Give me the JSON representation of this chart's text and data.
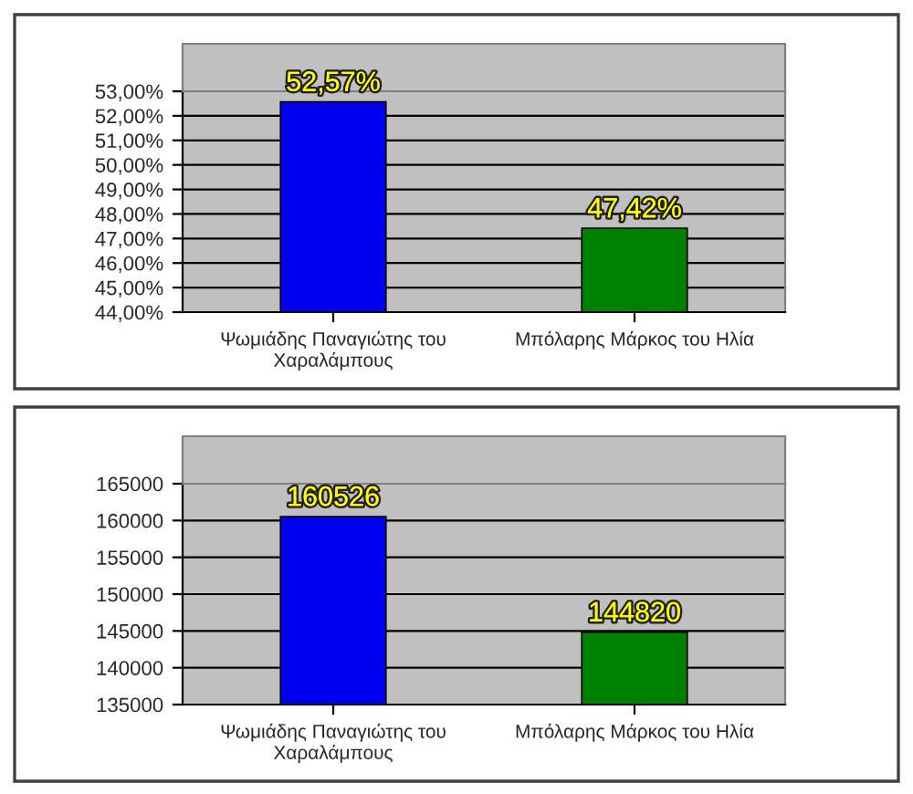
{
  "chart_data": [
    {
      "type": "bar",
      "categories": [
        "Ψωμιάδης Παναγιώτης του\nΧαραλάμπους",
        "Μπόλαρης Μάρκος του Ηλία"
      ],
      "values": [
        52.57,
        47.42
      ],
      "colors": [
        "#0000f0",
        "#008000"
      ],
      "value_labels": [
        "52,57%",
        "47,42%"
      ],
      "ylim": [
        44,
        53
      ],
      "yticks": [
        {
          "value": 44,
          "label": "44,00%"
        },
        {
          "value": 45,
          "label": "45,00%"
        },
        {
          "value": 46,
          "label": "46,00%"
        },
        {
          "value": 47,
          "label": "47,00%"
        },
        {
          "value": 48,
          "label": "48,00%"
        },
        {
          "value": 49,
          "label": "49,00%"
        },
        {
          "value": 50,
          "label": "50,00%"
        },
        {
          "value": 51,
          "label": "51,00%"
        },
        {
          "value": 52,
          "label": "52,00%"
        },
        {
          "value": 53,
          "label": "53,00%"
        }
      ],
      "grid": "y"
    },
    {
      "type": "bar",
      "categories": [
        "Ψωμιάδης Παναγιώτης του\nΧαραλάμπους",
        "Μπόλαρης Μάρκος του Ηλία"
      ],
      "values": [
        160526,
        144820
      ],
      "colors": [
        "#0000f0",
        "#008000"
      ],
      "data_labels": true,
      "ylim": [
        135000,
        165000
      ],
      "yticks": [
        135000,
        140000,
        145000,
        150000,
        155000,
        160000,
        165000
      ],
      "grid": "y"
    }
  ]
}
